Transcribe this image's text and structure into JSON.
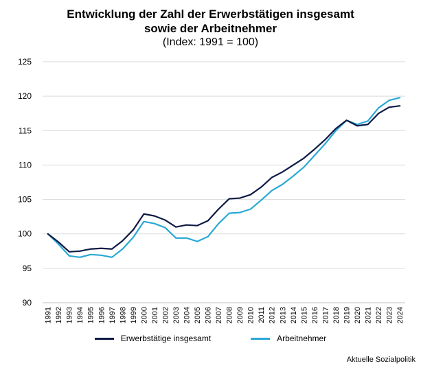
{
  "chart_data": {
    "type": "line",
    "title": "Entwicklung der Zahl der Erwerbstätigen insgesamt",
    "title_line2": "sowie der Arbeitnehmer",
    "subtitle": "(Index: 1991 = 100)",
    "xlabel": "",
    "ylabel": "",
    "ylim": [
      90,
      125
    ],
    "yticks": [
      90,
      95,
      100,
      105,
      110,
      115,
      120,
      125
    ],
    "grid": true,
    "legend_position": "bottom",
    "x": [
      "1991",
      "1992",
      "1993",
      "1994",
      "1995",
      "1996",
      "1997",
      "1998",
      "1999",
      "2000",
      "2001",
      "2002",
      "2003",
      "2004",
      "2005",
      "2006",
      "2007",
      "2008",
      "2009",
      "2010",
      "2011",
      "2012",
      "2013",
      "2014",
      "2015",
      "2016",
      "2017",
      "2018",
      "2019",
      "2020",
      "2021",
      "2022",
      "2023",
      "2024"
    ],
    "series": [
      {
        "name": "Erwerbstätige insgesamt",
        "color": "#0f1a45",
        "values": [
          100,
          98.8,
          97.4,
          97.5,
          97.8,
          97.9,
          97.8,
          99.0,
          100.6,
          102.9,
          102.6,
          102.0,
          101.0,
          101.3,
          101.2,
          101.9,
          103.6,
          105.1,
          105.2,
          105.7,
          106.8,
          108.2,
          109.0,
          110.0,
          111.0,
          112.3,
          113.7,
          115.3,
          116.5,
          115.7,
          115.9,
          117.5,
          118.4,
          118.6
        ]
      },
      {
        "name": "Arbeitnehmer",
        "color": "#29a8d5",
        "values": [
          100,
          98.5,
          96.8,
          96.6,
          97.0,
          96.9,
          96.6,
          97.8,
          99.5,
          101.8,
          101.5,
          100.9,
          99.4,
          99.4,
          98.9,
          99.6,
          101.5,
          103.0,
          103.1,
          103.6,
          104.9,
          106.3,
          107.2,
          108.4,
          109.7,
          111.4,
          113.1,
          115.0,
          116.5,
          115.9,
          116.4,
          118.3,
          119.4,
          119.8
        ]
      }
    ]
  },
  "source": "Aktuelle Sozialpolitik"
}
